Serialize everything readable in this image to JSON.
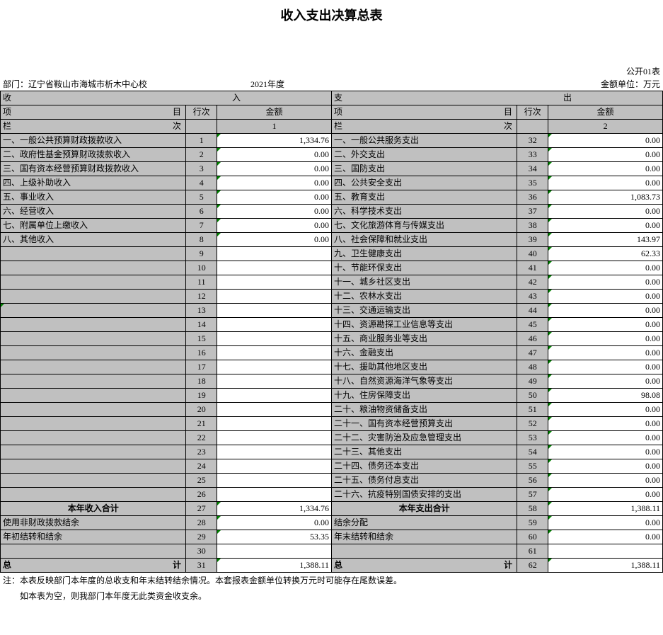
{
  "title": "收入支出决算总表",
  "form_no": "公开01表",
  "dept_label": "部门：",
  "dept_name": "辽宁省鞍山市海城市析木中心校",
  "year": "2021年度",
  "unit": "金额单位：万元",
  "headers": {
    "income_side": "收　　　　　　　　　　　　　　　　　　　　　　　　　　入",
    "expense_side": "支　　　　　　　　　　　　　　　　　　　　　　　　　　出",
    "item_l": "项　　　　　　　　　　　　　　　　　　　目",
    "item_r": "项　　　　　　　　　　　　　　　　　　　目",
    "seq": "行次",
    "amount": "金额",
    "col_l": "栏　　　　　　　　　　　　　　　　　　　次",
    "col_r": "栏　　　　　　　　　　　　　　　　　　　次",
    "col1": "1",
    "col2": "2"
  },
  "rows": [
    {
      "li": "一、一般公共预算财政拨款收入",
      "ls": "1",
      "la": "1,334.76",
      "ri": "一、一般公共服务支出",
      "rs": "32",
      "ra": "0.00"
    },
    {
      "li": "二、政府性基金预算财政拨款收入",
      "ls": "2",
      "la": "0.00",
      "ri": "二、外交支出",
      "rs": "33",
      "ra": "0.00"
    },
    {
      "li": "三、国有资本经营预算财政拨款收入",
      "ls": "3",
      "la": "0.00",
      "ri": "三、国防支出",
      "rs": "34",
      "ra": "0.00"
    },
    {
      "li": "四、上级补助收入",
      "ls": "4",
      "la": "0.00",
      "ri": "四、公共安全支出",
      "rs": "35",
      "ra": "0.00"
    },
    {
      "li": "五、事业收入",
      "ls": "5",
      "la": "0.00",
      "ri": "五、教育支出",
      "rs": "36",
      "ra": "1,083.73"
    },
    {
      "li": "六、经营收入",
      "ls": "6",
      "la": "0.00",
      "ri": "六、科学技术支出",
      "rs": "37",
      "ra": "0.00"
    },
    {
      "li": "七、附属单位上缴收入",
      "ls": "7",
      "la": "0.00",
      "ri": "七、文化旅游体育与传媒支出",
      "rs": "38",
      "ra": "0.00"
    },
    {
      "li": "八、其他收入",
      "ls": "8",
      "la": "0.00",
      "ri": "八、社会保障和就业支出",
      "rs": "39",
      "ra": "143.97"
    },
    {
      "li": "",
      "ls": "9",
      "la": "",
      "ri": "九、卫生健康支出",
      "rs": "40",
      "ra": "62.33"
    },
    {
      "li": "",
      "ls": "10",
      "la": "",
      "ri": "十、节能环保支出",
      "rs": "41",
      "ra": "0.00"
    },
    {
      "li": "",
      "ls": "11",
      "la": "",
      "ri": "十一、城乡社区支出",
      "rs": "42",
      "ra": "0.00"
    },
    {
      "li": "",
      "ls": "12",
      "la": "",
      "ri": "十二、农林水支出",
      "rs": "43",
      "ra": "0.00"
    },
    {
      "li": "",
      "ls": "13",
      "la": "",
      "ri": "十三、交通运输支出",
      "rs": "44",
      "ra": "0.00",
      "lcorner": true
    },
    {
      "li": "",
      "ls": "14",
      "la": "",
      "ri": "十四、资源勘探工业信息等支出",
      "rs": "45",
      "ra": "0.00"
    },
    {
      "li": "",
      "ls": "15",
      "la": "",
      "ri": "十五、商业服务业等支出",
      "rs": "46",
      "ra": "0.00"
    },
    {
      "li": "",
      "ls": "16",
      "la": "",
      "ri": "十六、金融支出",
      "rs": "47",
      "ra": "0.00"
    },
    {
      "li": "",
      "ls": "17",
      "la": "",
      "ri": "十七、援助其他地区支出",
      "rs": "48",
      "ra": "0.00"
    },
    {
      "li": "",
      "ls": "18",
      "la": "",
      "ri": "十八、自然资源海洋气象等支出",
      "rs": "49",
      "ra": "0.00"
    },
    {
      "li": "",
      "ls": "19",
      "la": "",
      "ri": "十九、住房保障支出",
      "rs": "50",
      "ra": "98.08"
    },
    {
      "li": "",
      "ls": "20",
      "la": "",
      "ri": "二十、粮油物资储备支出",
      "rs": "51",
      "ra": "0.00"
    },
    {
      "li": "",
      "ls": "21",
      "la": "",
      "ri": "二十一、国有资本经营预算支出",
      "rs": "52",
      "ra": "0.00"
    },
    {
      "li": "",
      "ls": "22",
      "la": "",
      "ri": "二十二、灾害防治及应急管理支出",
      "rs": "53",
      "ra": "0.00"
    },
    {
      "li": "",
      "ls": "23",
      "la": "",
      "ri": "二十三、其他支出",
      "rs": "54",
      "ra": "0.00"
    },
    {
      "li": "",
      "ls": "24",
      "la": "",
      "ri": "二十四、债务还本支出",
      "rs": "55",
      "ra": "0.00"
    },
    {
      "li": "",
      "ls": "25",
      "la": "",
      "ri": "二十五、债务付息支出",
      "rs": "56",
      "ra": "0.00"
    },
    {
      "li": "",
      "ls": "26",
      "la": "",
      "ri": "二十六、抗疫特别国债安排的支出",
      "rs": "57",
      "ra": "0.00"
    }
  ],
  "subtotal": {
    "li": "本年收入合计",
    "ls": "27",
    "la": "1,334.76",
    "ri": "本年支出合计",
    "rs": "58",
    "ra": "1,388.11"
  },
  "extras": [
    {
      "li": "使用非财政拨款结余",
      "ls": "28",
      "la": "0.00",
      "ri": "结余分配",
      "rs": "59",
      "ra": "0.00"
    },
    {
      "li": "年初结转和结余",
      "ls": "29",
      "la": "53.35",
      "ri": "年末结转和结余",
      "rs": "60",
      "ra": "0.00"
    },
    {
      "li": "",
      "ls": "30",
      "la": "",
      "ri": "",
      "rs": "61",
      "ra": ""
    }
  ],
  "total": {
    "li": "总　　　　　　　　　　　　　　　　　　　计",
    "ls": "31",
    "la": "1,388.11",
    "ri": "总　　　　　　　　　　　　　　　　　　　计",
    "rs": "62",
    "ra": "1,388.11"
  },
  "footnote1": "注：本表反映部门本年度的总收支和年末结转结余情况。本套报表金额单位转换万元时可能存在尾数误差。",
  "footnote2": "　　如本表为空，则我部门本年度无此类资金收支余。"
}
